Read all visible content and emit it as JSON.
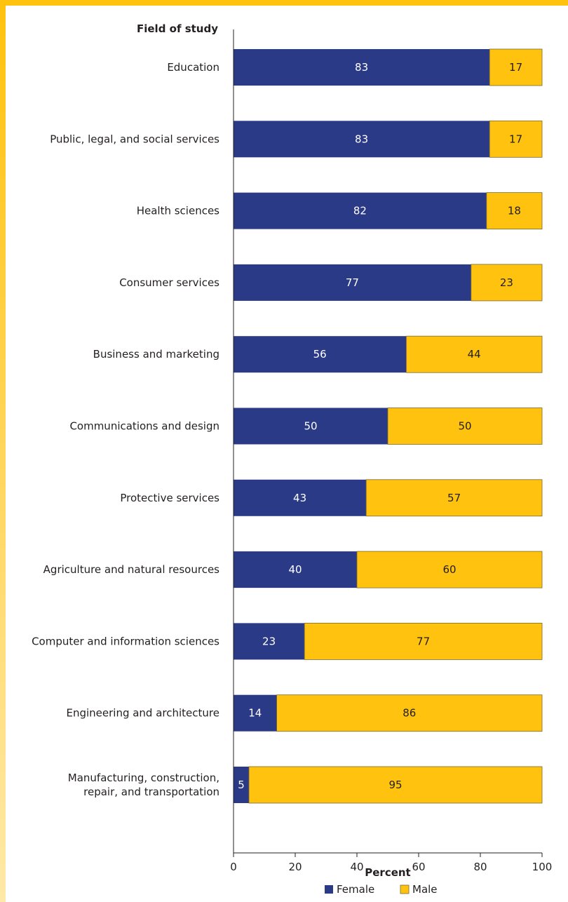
{
  "chart_data": {
    "type": "bar",
    "orientation": "horizontal",
    "stacked": true,
    "category_axis_title": "Field of study",
    "xlabel": "Percent",
    "xlim": [
      0,
      100
    ],
    "xticks": [
      0,
      20,
      40,
      60,
      80,
      100
    ],
    "categories": [
      "Education",
      "Public, legal, and social services",
      "Health sciences",
      "Consumer services",
      "Business and marketing",
      "Communications and design",
      "Protective services",
      "Agriculture and natural resources",
      "Computer and information sciences",
      "Engineering and architecture",
      "Manufacturing, construction,\nrepair, and transportation"
    ],
    "series": [
      {
        "name": "Female",
        "color": "#2b3a87",
        "label_color": "#ffffff",
        "values": [
          83,
          83,
          82,
          77,
          56,
          50,
          43,
          40,
          23,
          14,
          5
        ]
      },
      {
        "name": "Male",
        "color": "#ffc20e",
        "label_color": "#231f20",
        "values": [
          17,
          17,
          18,
          23,
          44,
          50,
          57,
          60,
          77,
          86,
          95
        ]
      }
    ],
    "legend_position": "bottom",
    "grid": false
  }
}
